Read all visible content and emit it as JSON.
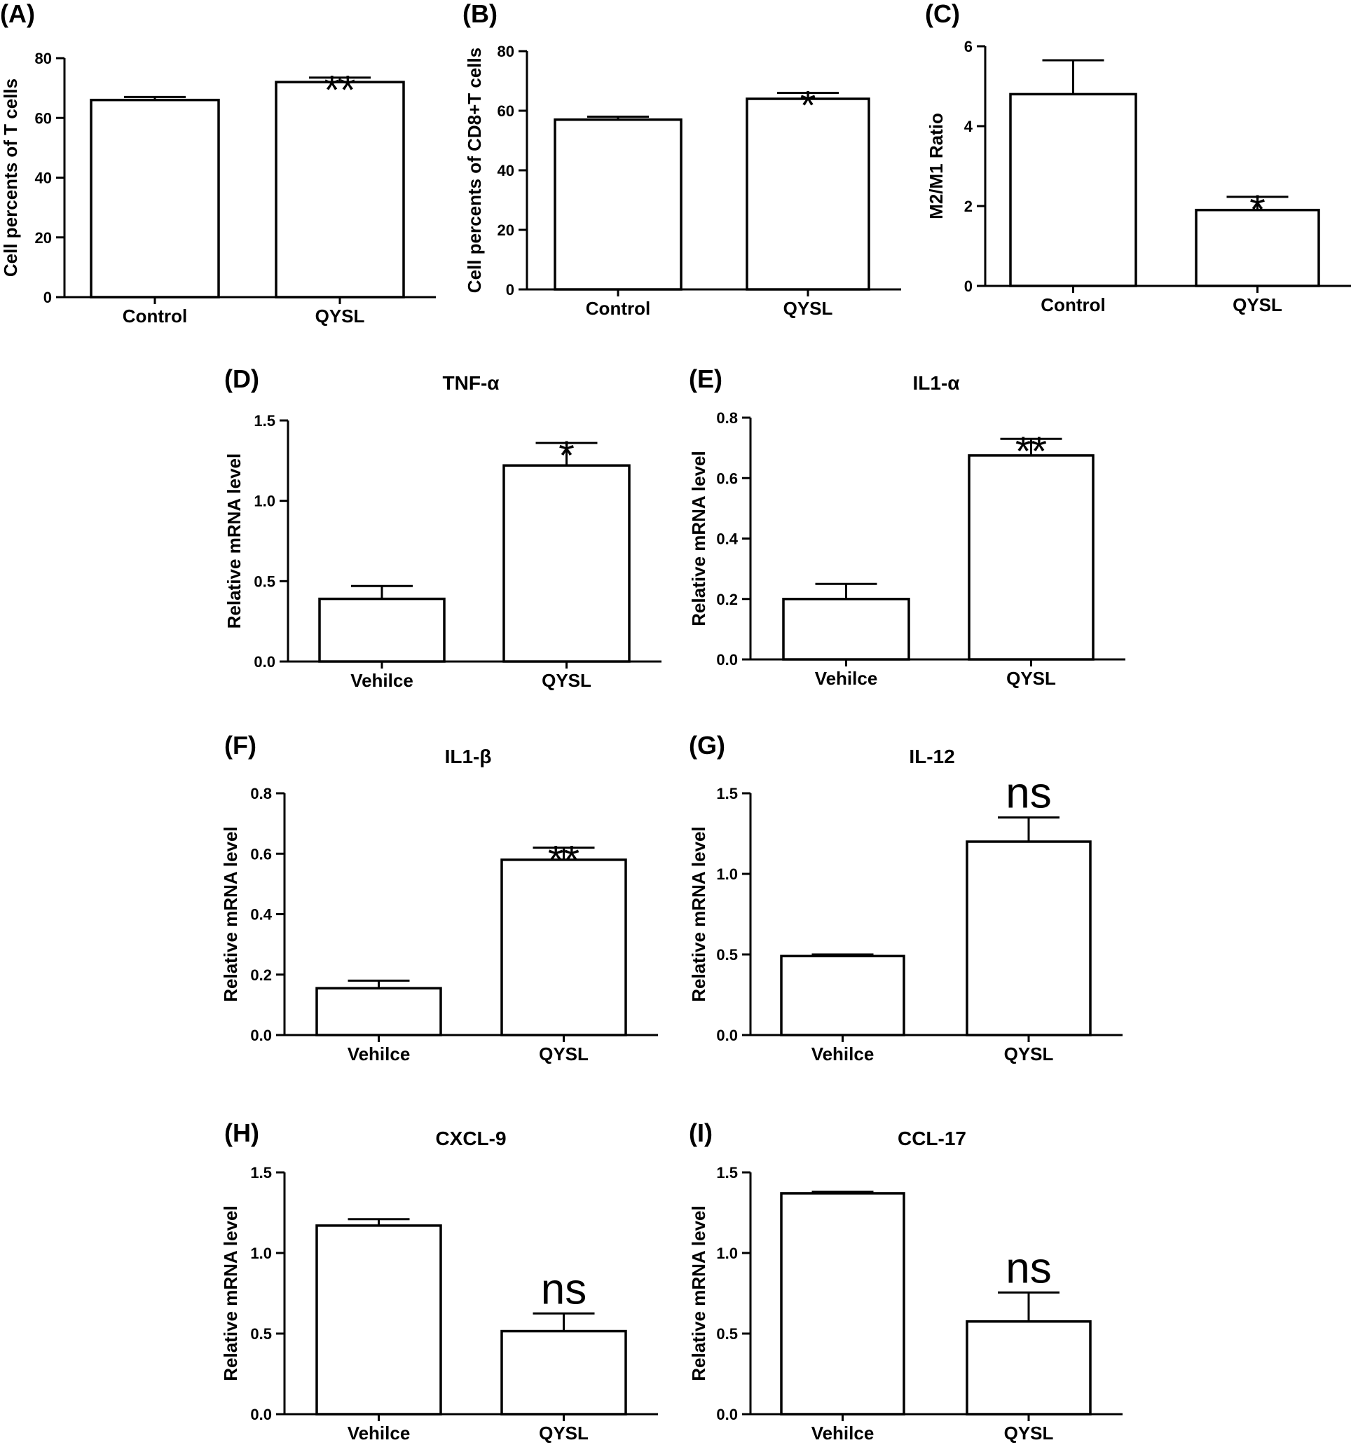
{
  "chart_data": [
    {
      "id": "A",
      "type": "bar",
      "panel_label": "(A)",
      "title": "",
      "ylabel": "Cell percents of T cells",
      "categories": [
        "Control",
        "QYSL"
      ],
      "values": [
        66,
        72
      ],
      "errors": [
        1,
        1.5
      ],
      "significance": [
        "",
        "**"
      ],
      "ylim": [
        0,
        80
      ],
      "yticks": [
        0,
        20,
        40,
        60,
        80
      ]
    },
    {
      "id": "B",
      "type": "bar",
      "panel_label": "(B)",
      "title": "",
      "ylabel": "Cell percents of CD8+T cells",
      "categories": [
        "Control",
        "QYSL"
      ],
      "values": [
        57,
        64
      ],
      "errors": [
        1,
        2
      ],
      "significance": [
        "",
        "*"
      ],
      "ylim": [
        0,
        80
      ],
      "yticks": [
        0,
        20,
        40,
        60,
        80
      ]
    },
    {
      "id": "C",
      "type": "bar",
      "panel_label": "(C)",
      "title": "",
      "ylabel": "M2/M1 Ratio",
      "categories": [
        "Control",
        "QYSL"
      ],
      "values": [
        4.8,
        1.9
      ],
      "errors": [
        0.85,
        0.33
      ],
      "significance": [
        "",
        "*"
      ],
      "ylim": [
        0,
        6
      ],
      "yticks": [
        0,
        2,
        4,
        6
      ]
    },
    {
      "id": "D",
      "type": "bar",
      "panel_label": "(D)",
      "title": "TNF-α",
      "ylabel": "Relative mRNA level",
      "categories": [
        "Vehilce",
        "QYSL"
      ],
      "values": [
        0.39,
        1.22
      ],
      "errors": [
        0.08,
        0.14
      ],
      "significance": [
        "",
        "*"
      ],
      "ylim": [
        0,
        1.5
      ],
      "yticks": [
        "0.0",
        "0.5",
        "1.0",
        "1.5"
      ]
    },
    {
      "id": "E",
      "type": "bar",
      "panel_label": "(E)",
      "title": "IL1-α",
      "ylabel": "Relative mRNA level",
      "categories": [
        "Vehilce",
        "QYSL"
      ],
      "values": [
        0.2,
        0.675
      ],
      "errors": [
        0.05,
        0.055
      ],
      "significance": [
        "",
        "**"
      ],
      "ylim": [
        0,
        0.8
      ],
      "yticks": [
        "0.0",
        "0.2",
        "0.4",
        "0.6",
        "0.8"
      ]
    },
    {
      "id": "F",
      "type": "bar",
      "panel_label": "(F)",
      "title": "IL1-β",
      "ylabel": "Relative mRNA level",
      "categories": [
        "Vehilce",
        "QYSL"
      ],
      "values": [
        0.155,
        0.58
      ],
      "errors": [
        0.025,
        0.04
      ],
      "significance": [
        "",
        "**"
      ],
      "ylim": [
        0,
        0.8
      ],
      "yticks": [
        "0.0",
        "0.2",
        "0.4",
        "0.6",
        "0.8"
      ]
    },
    {
      "id": "G",
      "type": "bar",
      "panel_label": "(G)",
      "title": "IL-12",
      "ylabel": "Relative mRNA level",
      "categories": [
        "Vehilce",
        "QYSL"
      ],
      "values": [
        0.49,
        1.2
      ],
      "errors": [
        0.01,
        0.15
      ],
      "significance": [
        "",
        "ns"
      ],
      "ylim": [
        0,
        1.5
      ],
      "yticks": [
        "0.0",
        "0.5",
        "1.0",
        "1.5"
      ]
    },
    {
      "id": "H",
      "type": "bar",
      "panel_label": "(H)",
      "title": "CXCL-9",
      "ylabel": "Relative mRNA level",
      "categories": [
        "Vehilce",
        "QYSL"
      ],
      "values": [
        1.17,
        0.515
      ],
      "errors": [
        0.04,
        0.11
      ],
      "significance": [
        "",
        "ns"
      ],
      "ylim": [
        0,
        1.5
      ],
      "yticks": [
        "0.0",
        "0.5",
        "1.0",
        "1.5"
      ]
    },
    {
      "id": "I",
      "type": "bar",
      "panel_label": "(I)",
      "title": "CCL-17",
      "ylabel": "Relative mRNA level",
      "categories": [
        "Vehilce",
        "QYSL"
      ],
      "values": [
        1.37,
        0.575
      ],
      "errors": [
        0.01,
        0.18
      ],
      "significance": [
        "",
        "ns"
      ],
      "ylim": [
        0,
        1.5
      ],
      "yticks": [
        "0.0",
        "0.5",
        "1.0",
        "1.5"
      ]
    }
  ]
}
